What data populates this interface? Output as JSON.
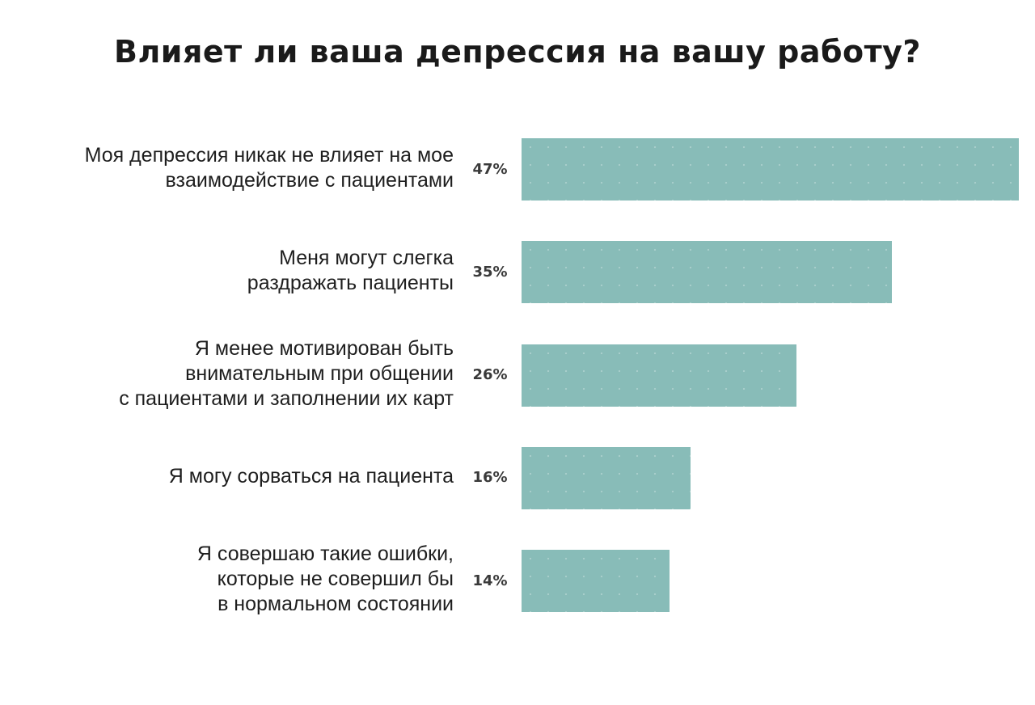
{
  "chart_data": {
    "type": "bar",
    "orientation": "horizontal",
    "title": "Влияет ли ваша депрессия на вашу работу?",
    "categories": [
      "Моя депрессия никак не влияет на мое\nвзаимодействие с пациентами",
      "Меня могут слегка\nраздражать пациенты",
      "Я менее мотивирован быть\nвнимательным при общении\nс пациентами и заполнении их карт",
      "Я могу сорваться на пациента",
      "Я совершаю такие ошибки,\nкоторые не совершил бы\nв нормальном состоянии"
    ],
    "values": [
      47,
      35,
      26,
      16,
      14
    ],
    "value_labels": [
      "47%",
      "35%",
      "26%",
      "16%",
      "14%"
    ],
    "xlabel": "",
    "ylabel": "",
    "xlim": [
      0,
      47
    ],
    "grid": false,
    "legend": "none",
    "bar_color": "#88bcb8"
  }
}
